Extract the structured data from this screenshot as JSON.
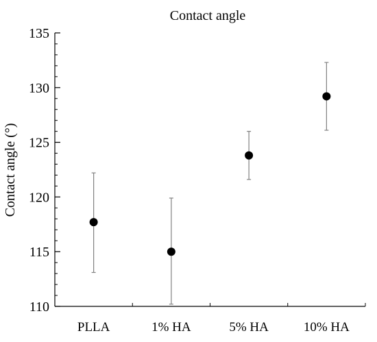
{
  "chart_data": {
    "type": "scatter",
    "title": "Contact angle",
    "xlabel": "",
    "ylabel": "Contact angle (°)",
    "categories": [
      "PLLA",
      "1% HA",
      "5% HA",
      "10% HA"
    ],
    "series": [
      {
        "values": [
          117.7,
          115.0,
          123.8,
          129.2
        ],
        "error_low": [
          113.1,
          110.2,
          121.6,
          126.1
        ],
        "error_high": [
          122.2,
          119.9,
          126.0,
          132.3
        ]
      }
    ],
    "ylim": [
      110,
      135
    ],
    "yticks": [
      110,
      115,
      120,
      125,
      130,
      135
    ],
    "ytick_labels": [
      "110",
      "115",
      "120",
      "125",
      "130",
      "135"
    ],
    "y_minor_step": 1,
    "grid": false,
    "legend": "none",
    "colors": {
      "marker": "#000000",
      "errorbar": "#808080",
      "axis": "#000000"
    }
  }
}
